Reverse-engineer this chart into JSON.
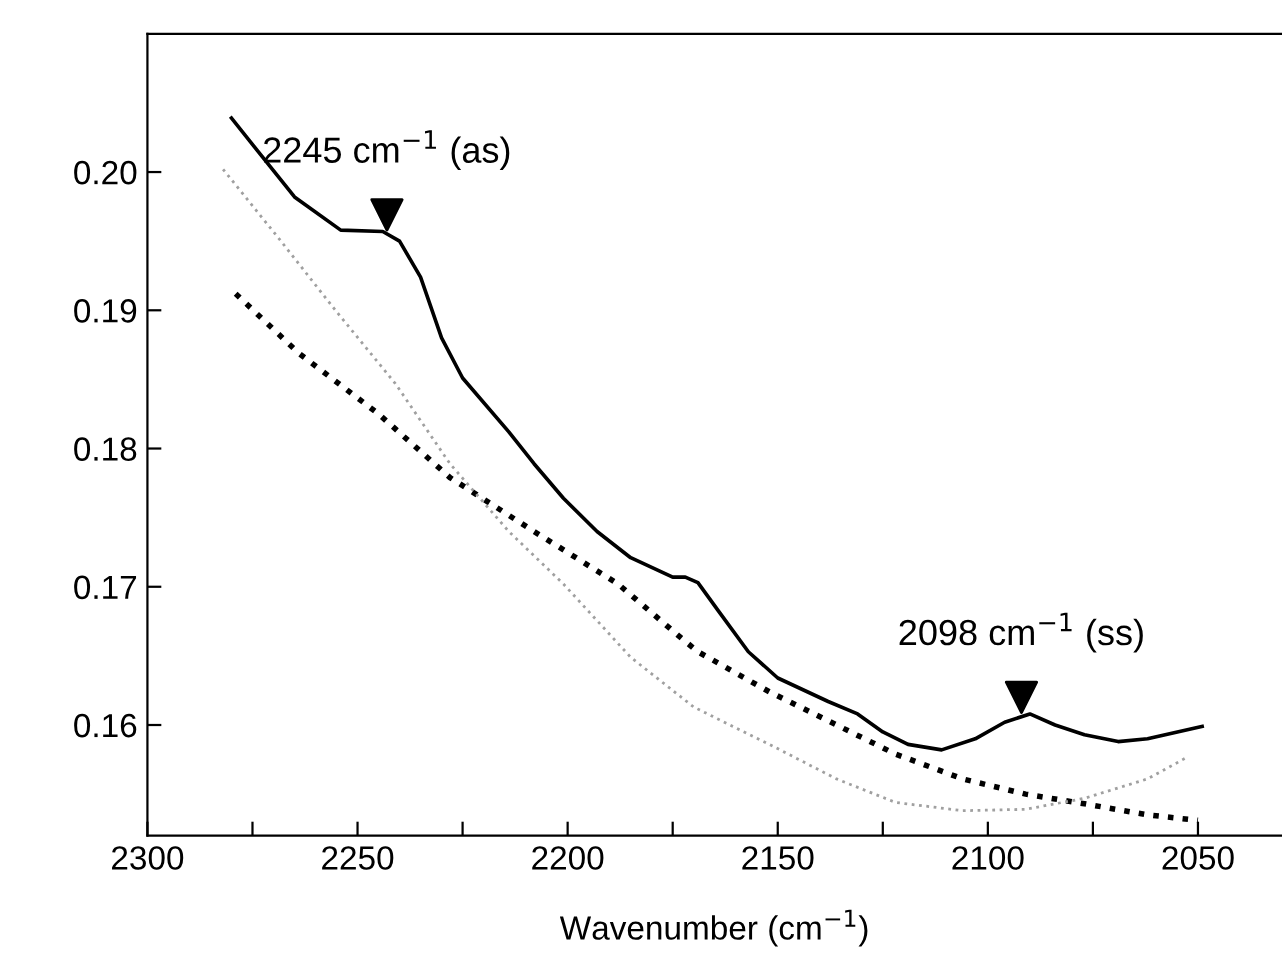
{
  "chart_data": {
    "type": "line",
    "xlabel": "Wavenumber (cm$^{−1}$)",
    "xlim": [
      2300,
      2030
    ],
    "ylim": [
      0.152,
      0.21
    ],
    "xticks": [
      2300,
      {
        "value": 2275,
        "label": null
      },
      2250,
      {
        "value": 2225,
        "label": null
      },
      2200,
      {
        "value": 2175,
        "label": null
      },
      2150,
      {
        "value": 2125,
        "label": null
      },
      2100,
      {
        "value": 2075,
        "label": null
      },
      2050
    ],
    "yticks": [
      0.16,
      0.17,
      0.18,
      0.19,
      {
        "value": 0.2,
        "label": "0.20"
      }
    ],
    "grid": false,
    "legend": false,
    "annotations": [
      {
        "text": "2245 cm$^{−1}$ (as)",
        "x": 2243,
        "y": 0.1957
      },
      {
        "text": "2098 cm$^{−1}$ (ss)",
        "x": 2092,
        "y": 0.1608
      }
    ],
    "series": [
      {
        "color": "#000000",
        "line_style": "solid",
        "x": [
          2280,
          2265,
          2254,
          2244,
          2240,
          2235,
          2230,
          2225,
          2214,
          2208,
          2201,
          2193,
          2185,
          2175,
          2172,
          2169,
          2164,
          2157,
          2150,
          2138,
          2131,
          2125,
          2119,
          2111,
          2103,
          2096,
          2090,
          2084,
          2077,
          2069,
          2062,
          2049
        ],
        "values": [
          0.2039,
          0.1982,
          0.1958,
          0.1957,
          0.195,
          0.1924,
          0.188,
          0.1851,
          0.1812,
          0.1789,
          0.1764,
          0.174,
          0.1721,
          0.1707,
          0.1707,
          0.1703,
          0.1682,
          0.1653,
          0.1634,
          0.1617,
          0.1608,
          0.1595,
          0.1586,
          0.1582,
          0.159,
          0.1602,
          0.1608,
          0.16,
          0.1593,
          0.1588,
          0.159,
          0.1599
        ]
      },
      {
        "color": "#000000",
        "line_style": "dotted",
        "x": [
          2279,
          2264,
          2245,
          2228,
          2208,
          2188,
          2173,
          2169,
          2152,
          2136,
          2122,
          2106,
          2091,
          2077,
          2062,
          2050
        ],
        "values": [
          0.1912,
          0.1869,
          0.1825,
          0.1779,
          0.174,
          0.1702,
          0.1663,
          0.1653,
          0.1624,
          0.16,
          0.1579,
          0.1561,
          0.155,
          0.1543,
          0.1535,
          0.1531
        ]
      },
      {
        "color": "#a0a0a0",
        "line_style": "dotted",
        "x": [
          2282,
          2269,
          2255,
          2241,
          2228,
          2214,
          2201,
          2185,
          2170,
          2152,
          2136,
          2122,
          2106,
          2091,
          2077,
          2062,
          2053
        ],
        "values": [
          0.2002,
          0.1953,
          0.1899,
          0.1847,
          0.1789,
          0.174,
          0.1702,
          0.1649,
          0.1613,
          0.1586,
          0.1561,
          0.1544,
          0.1538,
          0.1539,
          0.1547,
          0.1561,
          0.1576
        ]
      }
    ]
  }
}
